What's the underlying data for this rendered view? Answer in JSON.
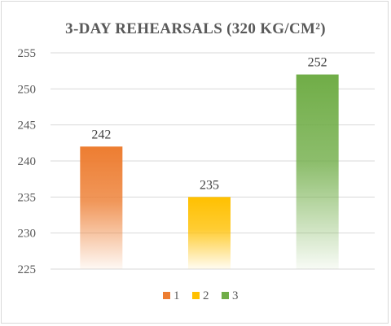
{
  "chart_data": {
    "type": "bar",
    "title": "3-DAY REHEARSALS (320 KG/CM²)",
    "categories": [
      "1",
      "2",
      "3"
    ],
    "values": [
      242,
      235,
      252
    ],
    "data_labels": [
      "242",
      "235",
      "252"
    ],
    "ylim": [
      225,
      255
    ],
    "yticks": [
      225,
      230,
      235,
      240,
      245,
      250,
      255
    ],
    "ytick_labels": [
      "225",
      "230",
      "235",
      "240",
      "245",
      "250",
      "255"
    ],
    "grid": true,
    "legend_position": "bottom",
    "legend": [
      "1",
      "2",
      "3"
    ],
    "colors": [
      "#ED7D31",
      "#FFC000",
      "#70AD47"
    ]
  }
}
